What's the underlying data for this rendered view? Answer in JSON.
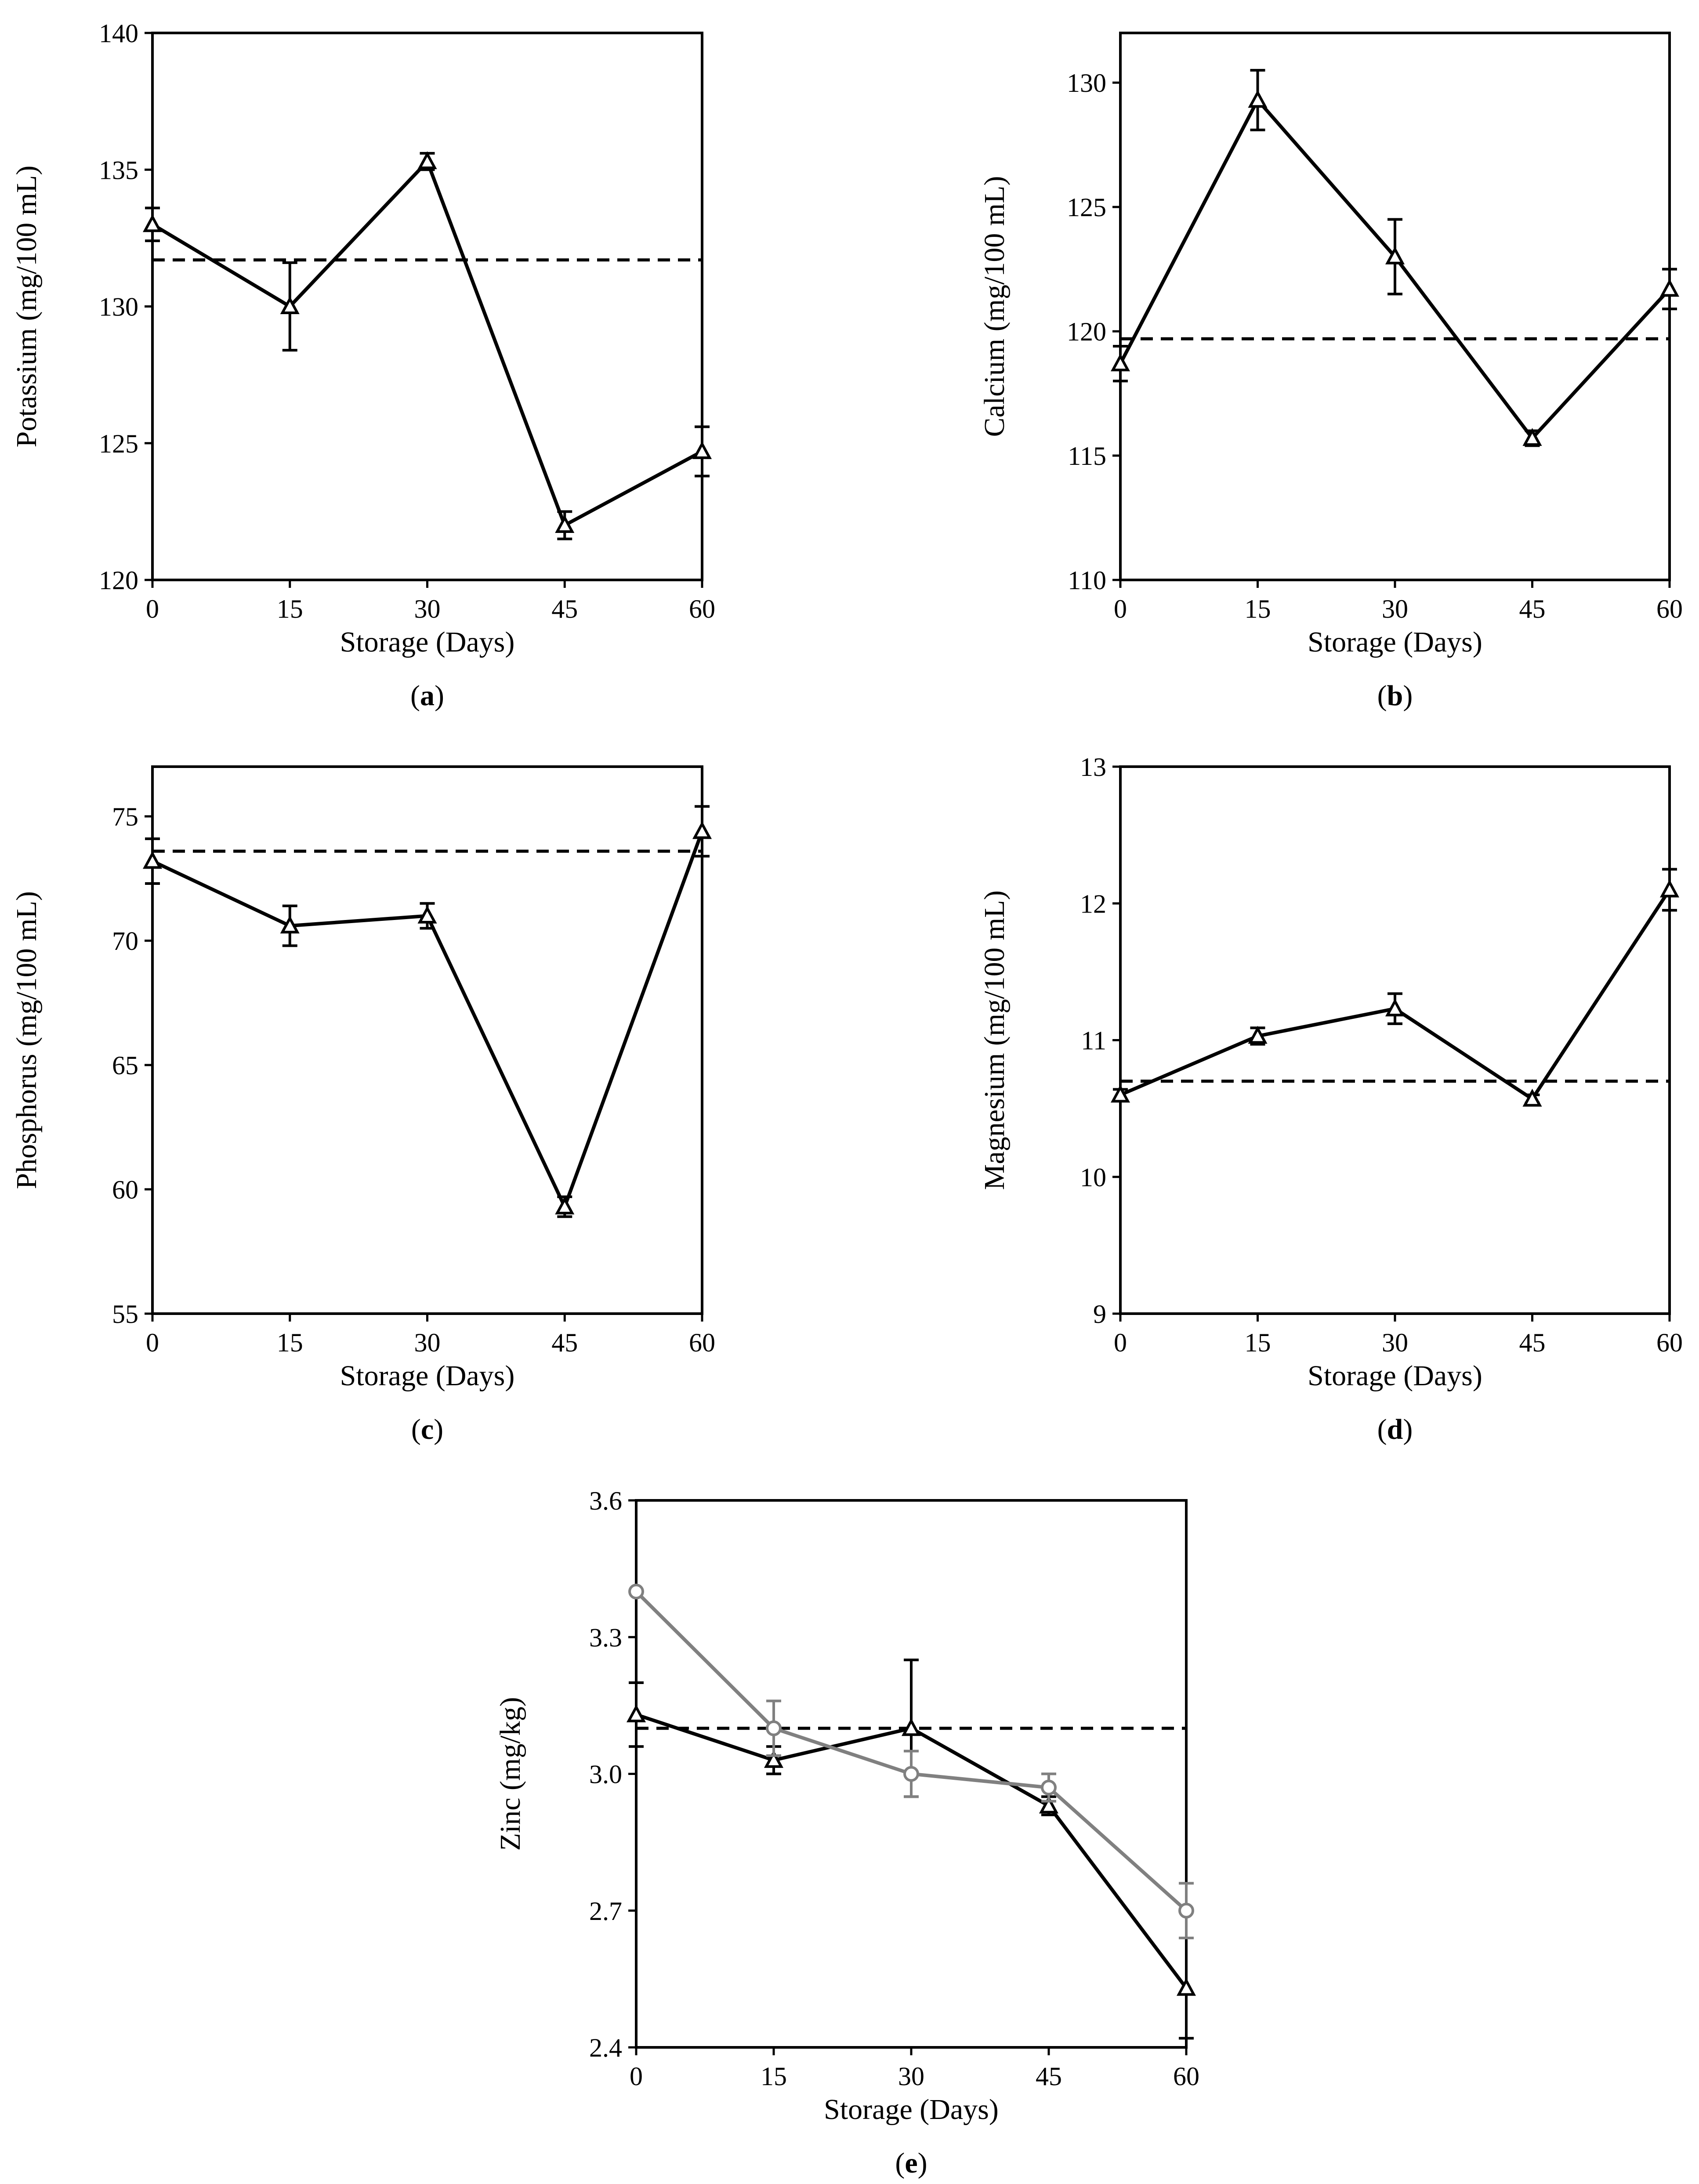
{
  "figure": {
    "xlabel": "Storage (Days)"
  },
  "chart_data": [
    {
      "id": "a",
      "type": "line",
      "panel_label": "a",
      "ylabel": "Potassium (mg/100 mL)",
      "xlabel": "Storage (Days)",
      "x": [
        0,
        15,
        30,
        45,
        60
      ],
      "xticks": [
        0,
        15,
        30,
        45,
        60
      ],
      "xlim": [
        0,
        60
      ],
      "ylim": [
        120,
        140
      ],
      "yticks": [
        120,
        125,
        130,
        135,
        140
      ],
      "reference_line": 131.7,
      "series": [
        {
          "name": "series-1",
          "marker": "triangle",
          "color": "#000000",
          "values": [
            133.0,
            130.0,
            135.3,
            122.0,
            124.7
          ],
          "errors": [
            0.6,
            1.6,
            0.3,
            0.5,
            0.9
          ]
        }
      ]
    },
    {
      "id": "b",
      "type": "line",
      "panel_label": "b",
      "ylabel": "Calcium (mg/100 mL)",
      "xlabel": "Storage (Days)",
      "x": [
        0,
        15,
        30,
        45,
        60
      ],
      "xticks": [
        0,
        15,
        30,
        45,
        60
      ],
      "xlim": [
        0,
        60
      ],
      "ylim": [
        110,
        132
      ],
      "yticks": [
        110,
        115,
        120,
        125,
        130
      ],
      "reference_line": 119.7,
      "series": [
        {
          "name": "series-1",
          "marker": "triangle",
          "color": "#000000",
          "values": [
            118.7,
            129.3,
            123.0,
            115.7,
            121.7
          ],
          "errors": [
            0.7,
            1.2,
            1.5,
            0.3,
            0.8
          ]
        }
      ]
    },
    {
      "id": "c",
      "type": "line",
      "panel_label": "c",
      "ylabel": "Phosphorus (mg/100 mL)",
      "xlabel": "Storage (Days)",
      "x": [
        0,
        15,
        30,
        45,
        60
      ],
      "xticks": [
        0,
        15,
        30,
        45,
        60
      ],
      "xlim": [
        0,
        60
      ],
      "ylim": [
        55,
        77
      ],
      "yticks": [
        55,
        60,
        65,
        70,
        75
      ],
      "reference_line": 73.6,
      "series": [
        {
          "name": "series-1",
          "marker": "triangle",
          "color": "#000000",
          "values": [
            73.2,
            70.6,
            71.0,
            59.3,
            74.4
          ],
          "errors": [
            0.9,
            0.8,
            0.5,
            0.4,
            1.0
          ]
        }
      ]
    },
    {
      "id": "d",
      "type": "line",
      "panel_label": "d",
      "ylabel": "Magnesium (mg/100 mL)",
      "xlabel": "Storage (Days)",
      "x": [
        0,
        15,
        30,
        45,
        60
      ],
      "xticks": [
        0,
        15,
        30,
        45,
        60
      ],
      "xlim": [
        0,
        60
      ],
      "ylim": [
        9,
        13
      ],
      "yticks": [
        9,
        10,
        11,
        12,
        13
      ],
      "reference_line": 10.7,
      "series": [
        {
          "name": "series-1",
          "marker": "triangle",
          "color": "#000000",
          "values": [
            10.6,
            11.03,
            11.23,
            10.57,
            12.1
          ],
          "errors": [
            0.04,
            0.06,
            0.11,
            0.03,
            0.15
          ]
        }
      ]
    },
    {
      "id": "e",
      "type": "line",
      "panel_label": "e",
      "ylabel": "Zinc (mg/kg)",
      "xlabel": "Storage (Days)",
      "x": [
        0,
        15,
        30,
        45,
        60
      ],
      "xticks": [
        0,
        15,
        30,
        45,
        60
      ],
      "xlim": [
        0,
        60
      ],
      "ylim": [
        2.4,
        3.6
      ],
      "yticks": [
        2.4,
        2.7,
        3.0,
        3.3,
        3.6
      ],
      "ytick_decimals": 1,
      "reference_line": 3.1,
      "series": [
        {
          "name": "series-1",
          "marker": "triangle",
          "color": "#000000",
          "values": [
            3.13,
            3.03,
            3.1,
            2.93,
            2.53
          ],
          "errors": [
            0.07,
            0.03,
            0.15,
            0.02,
            0.11
          ]
        },
        {
          "name": "series-2",
          "marker": "circle",
          "color": "#808080",
          "values": [
            3.4,
            3.1,
            3.0,
            2.97,
            2.7
          ],
          "errors": [
            0.0,
            0.06,
            0.05,
            0.03,
            0.06
          ]
        }
      ]
    }
  ]
}
